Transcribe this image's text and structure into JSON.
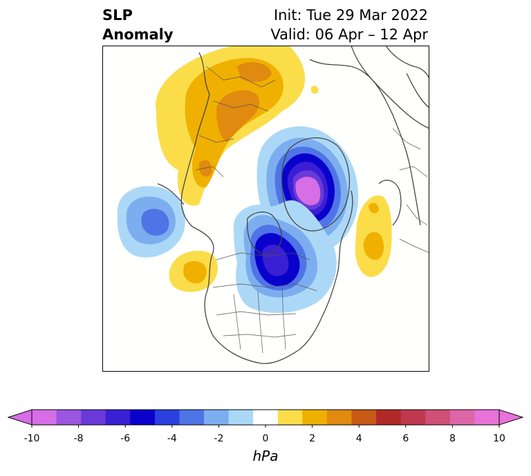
{
  "title": {
    "variable": "SLP",
    "field": "Anomaly",
    "init": "Init: Tue 29 Mar 2022",
    "valid": "Valid: 06 Apr – 12 Apr"
  },
  "colorbar": {
    "unit": "hPa",
    "min": -10,
    "max": 10,
    "step": 1,
    "extend": "both",
    "tick_labels": [
      "-10",
      "-8",
      "-6",
      "-4",
      "-2",
      "0",
      "2",
      "4",
      "6",
      "8",
      "10"
    ],
    "colors": [
      "#d66ee6",
      "#9b55e0",
      "#6a3ad9",
      "#3a1fd4",
      "#0a00cc",
      "#2c3fe0",
      "#4f74e6",
      "#7caeef",
      "#acd8f7",
      "#ffffff",
      "#fbdd4a",
      "#f0b000",
      "#e08a10",
      "#c85a18",
      "#b02828",
      "#c03850",
      "#cf4f78",
      "#dd66a8",
      "#e872d8"
    ]
  },
  "map": {
    "projection": "north-polar-stereographic",
    "region": "Northern Hemisphere (North America, Arctic, Europe)"
  }
}
